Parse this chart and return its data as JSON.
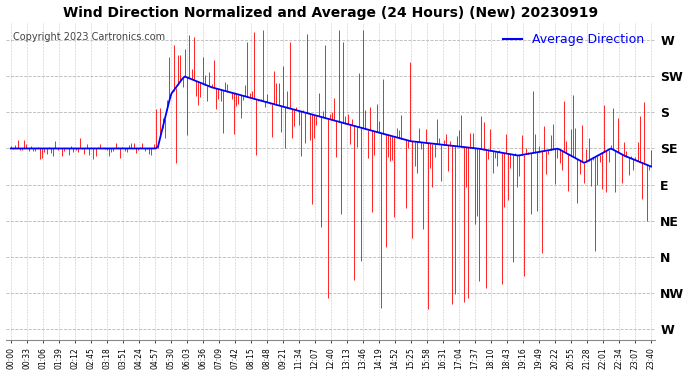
{
  "title": "Wind Direction Normalized and Average (24 Hours) (New) 20230919",
  "copyright": "Copyright 2023 Cartronics.com",
  "legend_label": "Average Direction",
  "legend_color": "blue",
  "bar_color": "red",
  "avg_color": "blue",
  "background_color": "#ffffff",
  "grid_color": "#b0b0b0",
  "ytick_labels": [
    "W",
    "SW",
    "S",
    "SE",
    "E",
    "NE",
    "N",
    "NW",
    "W"
  ],
  "ytick_values": [
    8,
    7,
    6,
    5,
    4,
    3,
    2,
    1,
    0
  ],
  "ymin": -0.3,
  "ymax": 8.5,
  "xtick_labels": [
    "00:00",
    "00:33",
    "01:06",
    "01:39",
    "02:12",
    "02:45",
    "03:18",
    "03:51",
    "04:24",
    "04:57",
    "05:30",
    "06:03",
    "06:36",
    "07:09",
    "07:42",
    "08:15",
    "08:48",
    "09:21",
    "11:34",
    "12:07",
    "12:40",
    "13:13",
    "13:46",
    "14:19",
    "14:52",
    "15:25",
    "15:58",
    "16:31",
    "17:04",
    "17:37",
    "18:10",
    "18:43",
    "19:16",
    "19:49",
    "20:22",
    "20:55",
    "21:28",
    "22:01",
    "22:34",
    "23:07",
    "23:40"
  ],
  "num_points": 288,
  "seed": 42,
  "figsize": [
    6.9,
    3.75
  ],
  "dpi": 100,
  "title_fontsize": 10,
  "copyright_fontsize": 7,
  "legend_fontsize": 9,
  "ytick_fontsize": 9,
  "xtick_fontsize": 5.5
}
